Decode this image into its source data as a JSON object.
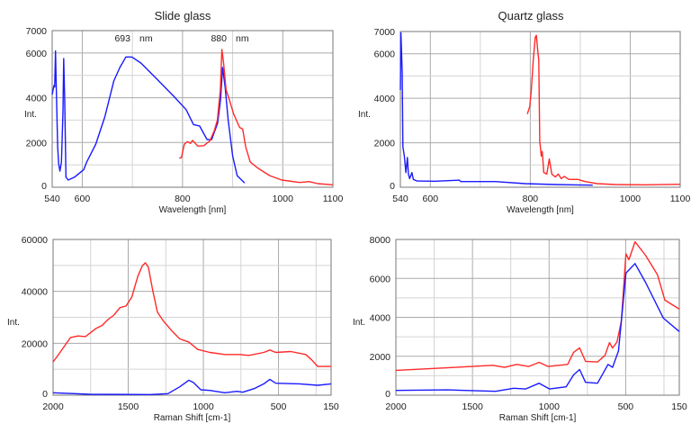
{
  "chart_data": [
    {
      "type": "line",
      "title": "Slide glass",
      "xlabel": "Wavelength [nm]",
      "ylabel": "Int.",
      "xlim": [
        540,
        1100
      ],
      "ylim": [
        0,
        7000
      ],
      "xticks": [
        540,
        600,
        800,
        1000,
        1100
      ],
      "yticks": [
        0,
        2000,
        4000,
        6000,
        7000
      ],
      "xgrid": [
        600,
        700,
        800,
        900,
        1000
      ],
      "ygrid": [
        1000,
        2000,
        3000,
        4000,
        5000,
        6000
      ],
      "grid": true,
      "annotations": [
        {
          "text": "693",
          "x": 700
        },
        {
          "text": "nm",
          "x": 700
        },
        {
          "text": "880",
          "x": 900
        },
        {
          "text": "nm",
          "x": 900
        }
      ],
      "series": [
        {
          "color": "#1a1aff",
          "points": [
            [
              540,
              4140
            ],
            [
              543.6,
              4550
            ],
            [
              545,
              4480
            ],
            [
              546.6,
              6090
            ],
            [
              548,
              4550
            ],
            [
              551,
              1800
            ],
            [
              553,
              1060
            ],
            [
              555.5,
              720
            ],
            [
              558.5,
              1130
            ],
            [
              561.5,
              3400
            ],
            [
              563,
              5750
            ],
            [
              565,
              3940
            ],
            [
              567.5,
              450
            ],
            [
              572,
              320
            ],
            [
              585,
              460
            ],
            [
              603,
              790
            ],
            [
              609,
              1130
            ],
            [
              627,
              1930
            ],
            [
              645,
              3140
            ],
            [
              663,
              4750
            ],
            [
              675,
              5350
            ],
            [
              687,
              5820
            ],
            [
              699,
              5820
            ],
            [
              717,
              5550
            ],
            [
              747,
              4880
            ],
            [
              782,
              4080
            ],
            [
              807,
              3470
            ],
            [
              822,
              2800
            ],
            [
              834,
              2740
            ],
            [
              849,
              2130
            ],
            [
              858,
              2130
            ],
            [
              870,
              2870
            ],
            [
              876,
              3940
            ],
            [
              880,
              5350
            ],
            [
              885,
              4480
            ],
            [
              891,
              3000
            ],
            [
              900,
              1390
            ],
            [
              909,
              520
            ],
            [
              924,
              190
            ]
          ]
        },
        {
          "color": "#ff2a2a",
          "points": [
            [
              793.5,
              1300
            ],
            [
              798,
              1330
            ],
            [
              803.7,
              1930
            ],
            [
              810,
              2040
            ],
            [
              815.7,
              1960
            ],
            [
              820,
              2090
            ],
            [
              830.6,
              1840
            ],
            [
              842.6,
              1860
            ],
            [
              854.5,
              2070
            ],
            [
              863.5,
              2530
            ],
            [
              869.5,
              3000
            ],
            [
              875.5,
              4350
            ],
            [
              878.5,
              6160
            ],
            [
              882,
              5550
            ],
            [
              887,
              4350
            ],
            [
              893,
              3940
            ],
            [
              902,
              3270
            ],
            [
              914,
              2670
            ],
            [
              920,
              2600
            ],
            [
              926,
              1800
            ],
            [
              935,
              1130
            ],
            [
              950,
              860
            ],
            [
              974,
              520
            ],
            [
              998,
              320
            ],
            [
              1034,
              215
            ],
            [
              1052,
              255
            ],
            [
              1070,
              160
            ],
            [
              1100,
              110
            ]
          ]
        }
      ]
    },
    {
      "type": "line",
      "title": "Quartz glass",
      "xlabel": "Wavelength [nm]",
      "ylabel": "Int.",
      "xlim": [
        540,
        1100
      ],
      "ylim": [
        0,
        7000
      ],
      "xticks": [
        540,
        600,
        800,
        1000,
        1100
      ],
      "yticks": [
        0,
        2000,
        4000,
        6000,
        7000
      ],
      "xgrid": [
        600,
        700,
        800,
        900,
        1000
      ],
      "ygrid": [
        1000,
        2000,
        3000,
        4000,
        5000,
        6000
      ],
      "grid": true,
      "series": [
        {
          "color": "#1a1aff",
          "points": [
            [
              540,
              4370
            ],
            [
              541,
              6940
            ],
            [
              543.6,
              5180
            ],
            [
              545,
              1810
            ],
            [
              548,
              1400
            ],
            [
              551,
              660
            ],
            [
              554,
              1340
            ],
            [
              556,
              590
            ],
            [
              558.6,
              390
            ],
            [
              563,
              660
            ],
            [
              566,
              350
            ],
            [
              573.6,
              280
            ],
            [
              610,
              270
            ],
            [
              658,
              320
            ],
            [
              661,
              255
            ],
            [
              730,
              255
            ],
            [
              790,
              160
            ],
            [
              850,
              120
            ],
            [
              925,
              95
            ]
          ]
        },
        {
          "color": "#ff2a2a",
          "points": [
            [
              794,
              3290
            ],
            [
              799,
              3630
            ],
            [
              802,
              4370
            ],
            [
              806,
              5720
            ],
            [
              810,
              6740
            ],
            [
              812,
              6830
            ],
            [
              815,
              6130
            ],
            [
              817,
              5720
            ],
            [
              819,
              2080
            ],
            [
              822,
              1400
            ],
            [
              824,
              1610
            ],
            [
              827,
              660
            ],
            [
              833,
              590
            ],
            [
              838,
              1270
            ],
            [
              843,
              590
            ],
            [
              850,
              460
            ],
            [
              856,
              590
            ],
            [
              862,
              390
            ],
            [
              868,
              490
            ],
            [
              877,
              350
            ],
            [
              895,
              350
            ],
            [
              910,
              255
            ],
            [
              934,
              160
            ],
            [
              970,
              120
            ],
            [
              1030,
              110
            ],
            [
              1100,
              135
            ]
          ]
        }
      ]
    },
    {
      "type": "line",
      "title": "",
      "xlabel": "Raman Shift [cm-1]",
      "ylabel": "Int.",
      "xlim": [
        2000,
        150
      ],
      "ylim": [
        0,
        60000
      ],
      "xticks": [
        2000,
        1500,
        1000,
        500,
        150
      ],
      "yticks": [
        0,
        20000,
        40000,
        60000
      ],
      "xgrid": [
        1750,
        1500,
        1250,
        1000,
        750,
        500,
        250
      ],
      "ygrid": [
        10000,
        20000,
        30000,
        40000,
        50000
      ],
      "grid": true,
      "series": [
        {
          "color": "#ff2a2a",
          "points": [
            [
              2000,
              12790
            ],
            [
              1954,
              16470
            ],
            [
              1884,
              22230
            ],
            [
              1834,
              22810
            ],
            [
              1785,
              22580
            ],
            [
              1715,
              25690
            ],
            [
              1675,
              26840
            ],
            [
              1635,
              29150
            ],
            [
              1595,
              30870
            ],
            [
              1555,
              33750
            ],
            [
              1515,
              34330
            ],
            [
              1476,
              37790
            ],
            [
              1436,
              45850
            ],
            [
              1406,
              49880
            ],
            [
              1386,
              51030
            ],
            [
              1366,
              49300
            ],
            [
              1336,
              40090
            ],
            [
              1306,
              32030
            ],
            [
              1266,
              28570
            ],
            [
              1206,
              24540
            ],
            [
              1157,
              21660
            ],
            [
              1097,
              20500
            ],
            [
              1037,
              17630
            ],
            [
              957,
              16470
            ],
            [
              857,
              15670
            ],
            [
              758,
              15670
            ],
            [
              698,
              15320
            ],
            [
              598,
              16470
            ],
            [
              558,
              17400
            ],
            [
              518,
              16470
            ],
            [
              418,
              16820
            ],
            [
              319,
              15670
            ],
            [
              279,
              13590
            ],
            [
              239,
              11060
            ],
            [
              150,
              11060
            ]
          ]
        },
        {
          "color": "#1a1aff",
          "points": [
            [
              2000,
              920
            ],
            [
              1755,
              350
            ],
            [
              1356,
              230
            ],
            [
              1236,
              580
            ],
            [
              1157,
              3230
            ],
            [
              1097,
              5760
            ],
            [
              1067,
              4950
            ],
            [
              1017,
              2070
            ],
            [
              957,
              1840
            ],
            [
              857,
              920
            ],
            [
              777,
              1500
            ],
            [
              738,
              1150
            ],
            [
              658,
              2650
            ],
            [
              598,
              4380
            ],
            [
              558,
              6110
            ],
            [
              518,
              4610
            ],
            [
              359,
              4380
            ],
            [
              239,
              3800
            ],
            [
              150,
              4380
            ]
          ]
        }
      ]
    },
    {
      "type": "line",
      "title": "",
      "xlabel": "Raman Shift [cm-1]",
      "ylabel": "Int.",
      "xlim": [
        2000,
        150
      ],
      "ylim": [
        0,
        8000
      ],
      "xticks": [
        2000,
        1500,
        1000,
        500,
        150
      ],
      "yticks": [
        0,
        2000,
        4000,
        6000,
        8000
      ],
      "xgrid": [
        1750,
        1500,
        1250,
        1000,
        750,
        500,
        250
      ],
      "ygrid": [
        1000,
        2000,
        3000,
        4000,
        5000,
        6000,
        7000
      ],
      "grid": true,
      "series": [
        {
          "color": "#ff2a2a",
          "points": [
            [
              2000,
              1275
            ],
            [
              1740,
              1380
            ],
            [
              1505,
              1475
            ],
            [
              1368,
              1535
            ],
            [
              1290,
              1430
            ],
            [
              1212,
              1580
            ],
            [
              1134,
              1475
            ],
            [
              1065,
              1690
            ],
            [
              1006,
              1475
            ],
            [
              879,
              1580
            ],
            [
              840,
              2200
            ],
            [
              801,
              2430
            ],
            [
              762,
              1740
            ],
            [
              684,
              1705
            ],
            [
              635,
              2045
            ],
            [
              606,
              2700
            ],
            [
              586,
              2430
            ],
            [
              557,
              2730
            ],
            [
              528,
              3810
            ],
            [
              498,
              7265
            ],
            [
              479,
              6960
            ],
            [
              439,
              7880
            ],
            [
              371,
              7190
            ],
            [
              293,
              6190
            ],
            [
              244,
              4885
            ],
            [
              150,
              4420
            ]
          ]
        },
        {
          "color": "#1a1aff",
          "points": [
            [
              2000,
              245
            ],
            [
              1662,
              275
            ],
            [
              1349,
              200
            ],
            [
              1231,
              355
            ],
            [
              1153,
              320
            ],
            [
              1065,
              615
            ],
            [
              997,
              320
            ],
            [
              889,
              430
            ],
            [
              840,
              1045
            ],
            [
              801,
              1320
            ],
            [
              762,
              660
            ],
            [
              684,
              615
            ],
            [
              615,
              1580
            ],
            [
              586,
              1430
            ],
            [
              547,
              2275
            ],
            [
              498,
              6270
            ],
            [
              439,
              6760
            ],
            [
              371,
              5805
            ],
            [
              254,
              3960
            ],
            [
              150,
              3270
            ]
          ]
        }
      ]
    }
  ]
}
